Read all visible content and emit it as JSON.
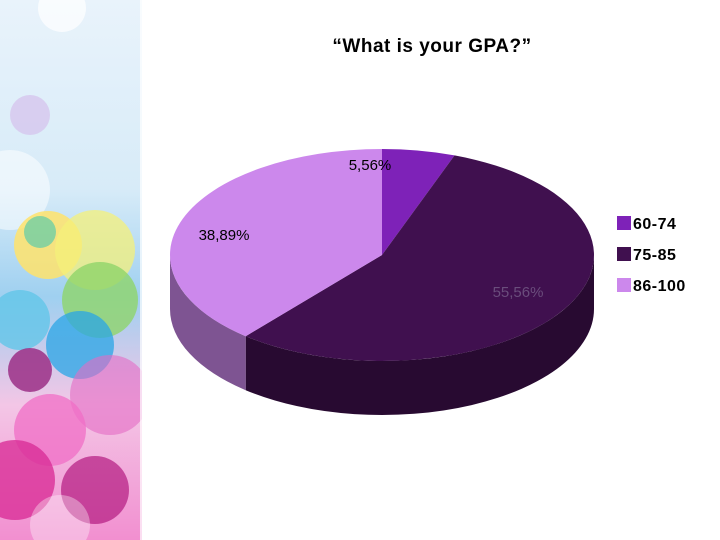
{
  "colors": {
    "slice_60_74": "#7e22b8",
    "slice_75_85": "#40104f",
    "slice_86_100": "#cc88ec"
  },
  "chart_data": {
    "type": "pie",
    "style": "3d",
    "title": "“What is your GPA?”",
    "slices": [
      {
        "label": "60-74",
        "value": 5.56,
        "data_label": "5,56%",
        "color": "#7e22b8"
      },
      {
        "label": "75-85",
        "value": 55.56,
        "data_label": "55,56%",
        "color": "#40104f"
      },
      {
        "label": "86-100",
        "value": 38.89,
        "data_label": "38,89%",
        "color": "#cc88ec"
      }
    ],
    "legend_position": "right"
  }
}
